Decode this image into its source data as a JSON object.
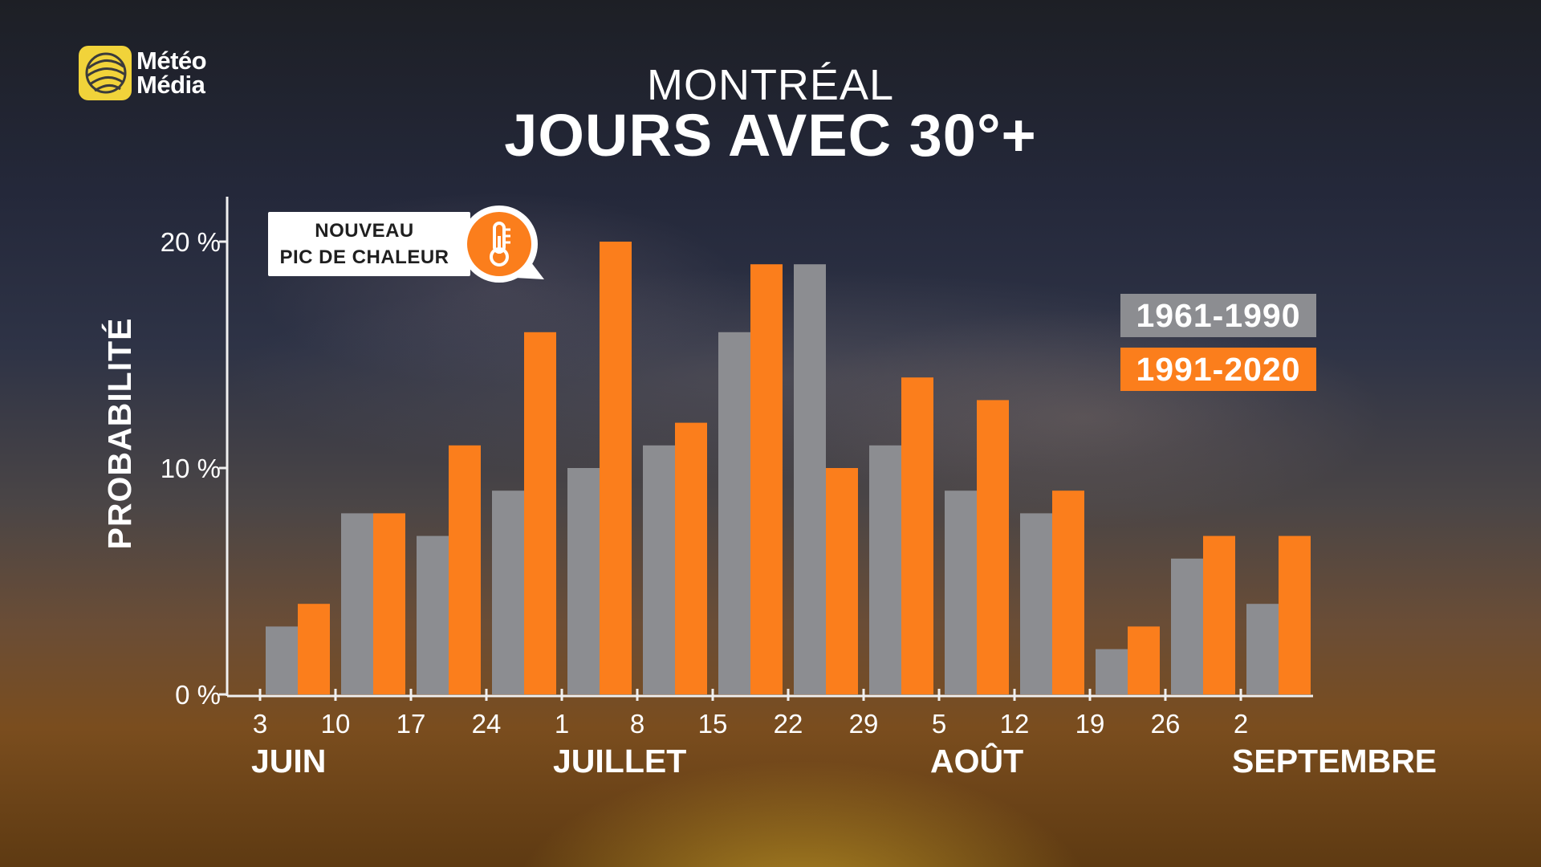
{
  "brand": {
    "line1": "Météo",
    "line2": "Média"
  },
  "title": {
    "city": "MONTRÉAL",
    "main": "JOURS AVEC 30°+"
  },
  "annotation": {
    "line1": "NOUVEAU",
    "line2": "PIC DE CHALEUR",
    "icon": "thermometer-icon"
  },
  "colors": {
    "series_1961_1990": "#8c8d91",
    "series_1991_2020": "#fb7e1c"
  },
  "legend": [
    {
      "label": "1961-1990"
    },
    {
      "label": "1991-2020"
    }
  ],
  "chart_data": {
    "type": "bar",
    "title": "JOURS AVEC 30°+",
    "ylabel": "PROBABILITÉ",
    "xlabel": "",
    "ylim": [
      0,
      22
    ],
    "yticks": [
      "0 %",
      "10 %",
      "20 %"
    ],
    "yticks_values": [
      0,
      10,
      20
    ],
    "xticks": [
      "3",
      "10",
      "17",
      "24",
      "1",
      "8",
      "15",
      "22",
      "29",
      "5",
      "12",
      "19",
      "26",
      "2"
    ],
    "months": [
      {
        "label": "JUIN",
        "at_tick": 0
      },
      {
        "label": "JUILLET",
        "at_tick": 4
      },
      {
        "label": "AOÛT",
        "at_tick": 9
      },
      {
        "label": "SEPTEMBRE",
        "at_tick": 13
      }
    ],
    "series": [
      {
        "name": "1961-1990",
        "values": [
          3,
          8,
          7,
          9,
          10,
          11,
          16,
          19,
          11,
          9,
          8,
          2,
          6,
          4
        ]
      },
      {
        "name": "1991-2020",
        "values": [
          4,
          8,
          11,
          16,
          20,
          12,
          19,
          10,
          14,
          13,
          9,
          3,
          7,
          7
        ]
      }
    ],
    "grid": false,
    "legend_position": "right"
  }
}
